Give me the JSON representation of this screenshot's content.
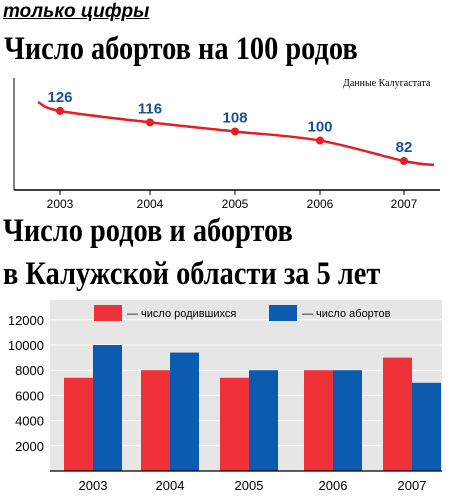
{
  "header": {
    "tag": "только цифры",
    "title1": "Число абортов на 100 родов",
    "source": "Данные Калугастата",
    "title2_line1": "Число родов и абортов",
    "title2_line2": "в Калужской области за 5 лет"
  },
  "colors": {
    "line": "#e31e24",
    "label_blue": "#1b4f9c",
    "births": "#ee3238",
    "abortions": "#0b5bb0",
    "bar_bg": "#e6e6e6",
    "line_bg": "#ffffff"
  },
  "chart_data": [
    {
      "type": "line",
      "categories": [
        "2003",
        "2004",
        "2005",
        "2006",
        "2007"
      ],
      "values": [
        126,
        116,
        108,
        100,
        82
      ],
      "data_labels": [
        "126",
        "116",
        "108",
        "100",
        "82"
      ],
      "title": "Число абортов на 100 родов"
    },
    {
      "type": "bar",
      "categories": [
        "2003",
        "2004",
        "2005",
        "2006",
        "2007"
      ],
      "series": [
        {
          "name": "— число родившихся",
          "values": [
            7400,
            8000,
            7400,
            8000,
            9000
          ]
        },
        {
          "name": "— число абортов",
          "values": [
            10000,
            9400,
            8000,
            8000,
            7000
          ]
        }
      ],
      "yticks": [
        "12000",
        "10000",
        "8000",
        "6000",
        "4000",
        "2000"
      ],
      "ylim": [
        0,
        12000
      ],
      "legend": "top",
      "grid": true
    }
  ]
}
